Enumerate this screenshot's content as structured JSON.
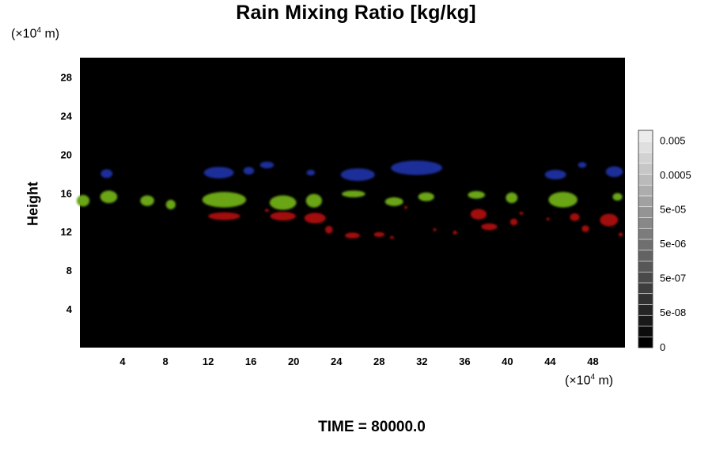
{
  "chart_data": {
    "type": "heatmap",
    "title": "Rain Mixing Ratio [kg/kg]",
    "ylabel": "Height",
    "x_unit": "(×10⁴ m)",
    "y_unit": "(×10⁴ m)",
    "x_unit_base": "(×10",
    "x_unit_exp": "4",
    "x_unit_tail": " m)",
    "y_unit_base": "(×10",
    "y_unit_exp": "4",
    "y_unit_tail": " m)",
    "x_ticks": [
      4,
      8,
      12,
      16,
      20,
      24,
      28,
      32,
      36,
      40,
      44,
      48
    ],
    "y_ticks": [
      4,
      8,
      12,
      16,
      20,
      24,
      28
    ],
    "xlim": [
      0,
      51
    ],
    "ylim": [
      0,
      30
    ],
    "background_color": "#000000",
    "colorbar": {
      "labels": [
        "0.005",
        "0.0005",
        "5e-05",
        "5e-06",
        "5e-07",
        "5e-08",
        "0"
      ],
      "levels": 20
    },
    "series": [
      {
        "color": "#1c2e9a",
        "regions": [
          {
            "x": 13.0,
            "y": 18.1,
            "w": 2.8,
            "h": 1.2
          },
          {
            "x": 15.8,
            "y": 18.3,
            "w": 1.0,
            "h": 0.8
          },
          {
            "x": 17.5,
            "y": 18.9,
            "w": 1.3,
            "h": 0.7
          },
          {
            "x": 2.5,
            "y": 18.0,
            "w": 1.1,
            "h": 0.9
          },
          {
            "x": 21.6,
            "y": 18.1,
            "w": 0.8,
            "h": 0.6
          },
          {
            "x": 26.0,
            "y": 17.9,
            "w": 3.2,
            "h": 1.3
          },
          {
            "x": 31.5,
            "y": 18.6,
            "w": 4.8,
            "h": 1.5
          },
          {
            "x": 44.5,
            "y": 17.9,
            "w": 2.0,
            "h": 1.0
          },
          {
            "x": 47.0,
            "y": 18.9,
            "w": 0.8,
            "h": 0.6
          },
          {
            "x": 50.0,
            "y": 18.2,
            "w": 1.6,
            "h": 1.1
          }
        ]
      },
      {
        "color": "#6aa515",
        "regions": [
          {
            "x": 0.3,
            "y": 15.2,
            "w": 1.2,
            "h": 1.2
          },
          {
            "x": 2.7,
            "y": 15.6,
            "w": 1.6,
            "h": 1.3
          },
          {
            "x": 6.3,
            "y": 15.2,
            "w": 1.3,
            "h": 1.1
          },
          {
            "x": 8.5,
            "y": 14.8,
            "w": 0.9,
            "h": 1.0
          },
          {
            "x": 13.5,
            "y": 15.3,
            "w": 4.1,
            "h": 1.6
          },
          {
            "x": 19.0,
            "y": 15.0,
            "w": 2.5,
            "h": 1.5
          },
          {
            "x": 21.9,
            "y": 15.2,
            "w": 1.5,
            "h": 1.4
          },
          {
            "x": 25.6,
            "y": 15.9,
            "w": 2.2,
            "h": 0.7
          },
          {
            "x": 29.4,
            "y": 15.1,
            "w": 1.7,
            "h": 0.9
          },
          {
            "x": 32.4,
            "y": 15.6,
            "w": 1.5,
            "h": 0.9
          },
          {
            "x": 37.1,
            "y": 15.8,
            "w": 1.6,
            "h": 0.8
          },
          {
            "x": 40.4,
            "y": 15.5,
            "w": 1.1,
            "h": 1.1
          },
          {
            "x": 45.2,
            "y": 15.3,
            "w": 2.7,
            "h": 1.6
          },
          {
            "x": 50.3,
            "y": 15.6,
            "w": 0.9,
            "h": 0.8
          }
        ]
      },
      {
        "color": "#a3100f",
        "regions": [
          {
            "x": 13.5,
            "y": 13.6,
            "w": 3.0,
            "h": 0.8
          },
          {
            "x": 17.5,
            "y": 14.2,
            "w": 0.4,
            "h": 0.3
          },
          {
            "x": 19.0,
            "y": 13.6,
            "w": 2.4,
            "h": 0.9
          },
          {
            "x": 22.0,
            "y": 13.4,
            "w": 2.0,
            "h": 1.1
          },
          {
            "x": 23.3,
            "y": 12.2,
            "w": 0.7,
            "h": 0.8
          },
          {
            "x": 25.5,
            "y": 11.6,
            "w": 1.4,
            "h": 0.6
          },
          {
            "x": 28.0,
            "y": 11.7,
            "w": 1.0,
            "h": 0.5
          },
          {
            "x": 29.2,
            "y": 11.4,
            "w": 0.4,
            "h": 0.3
          },
          {
            "x": 30.5,
            "y": 14.5,
            "w": 0.3,
            "h": 0.3
          },
          {
            "x": 33.2,
            "y": 12.2,
            "w": 0.3,
            "h": 0.3
          },
          {
            "x": 35.1,
            "y": 11.9,
            "w": 0.4,
            "h": 0.4
          },
          {
            "x": 37.3,
            "y": 13.8,
            "w": 1.5,
            "h": 1.1
          },
          {
            "x": 38.3,
            "y": 12.5,
            "w": 1.5,
            "h": 0.7
          },
          {
            "x": 40.6,
            "y": 13.0,
            "w": 0.7,
            "h": 0.7
          },
          {
            "x": 41.3,
            "y": 13.9,
            "w": 0.4,
            "h": 0.3
          },
          {
            "x": 43.8,
            "y": 13.3,
            "w": 0.3,
            "h": 0.3
          },
          {
            "x": 46.3,
            "y": 13.5,
            "w": 0.9,
            "h": 0.8
          },
          {
            "x": 47.3,
            "y": 12.3,
            "w": 0.7,
            "h": 0.7
          },
          {
            "x": 49.5,
            "y": 13.2,
            "w": 1.7,
            "h": 1.3
          },
          {
            "x": 50.6,
            "y": 11.7,
            "w": 0.4,
            "h": 0.4
          }
        ]
      }
    ]
  },
  "footer": {
    "time_label": "TIME = 80000.0"
  }
}
